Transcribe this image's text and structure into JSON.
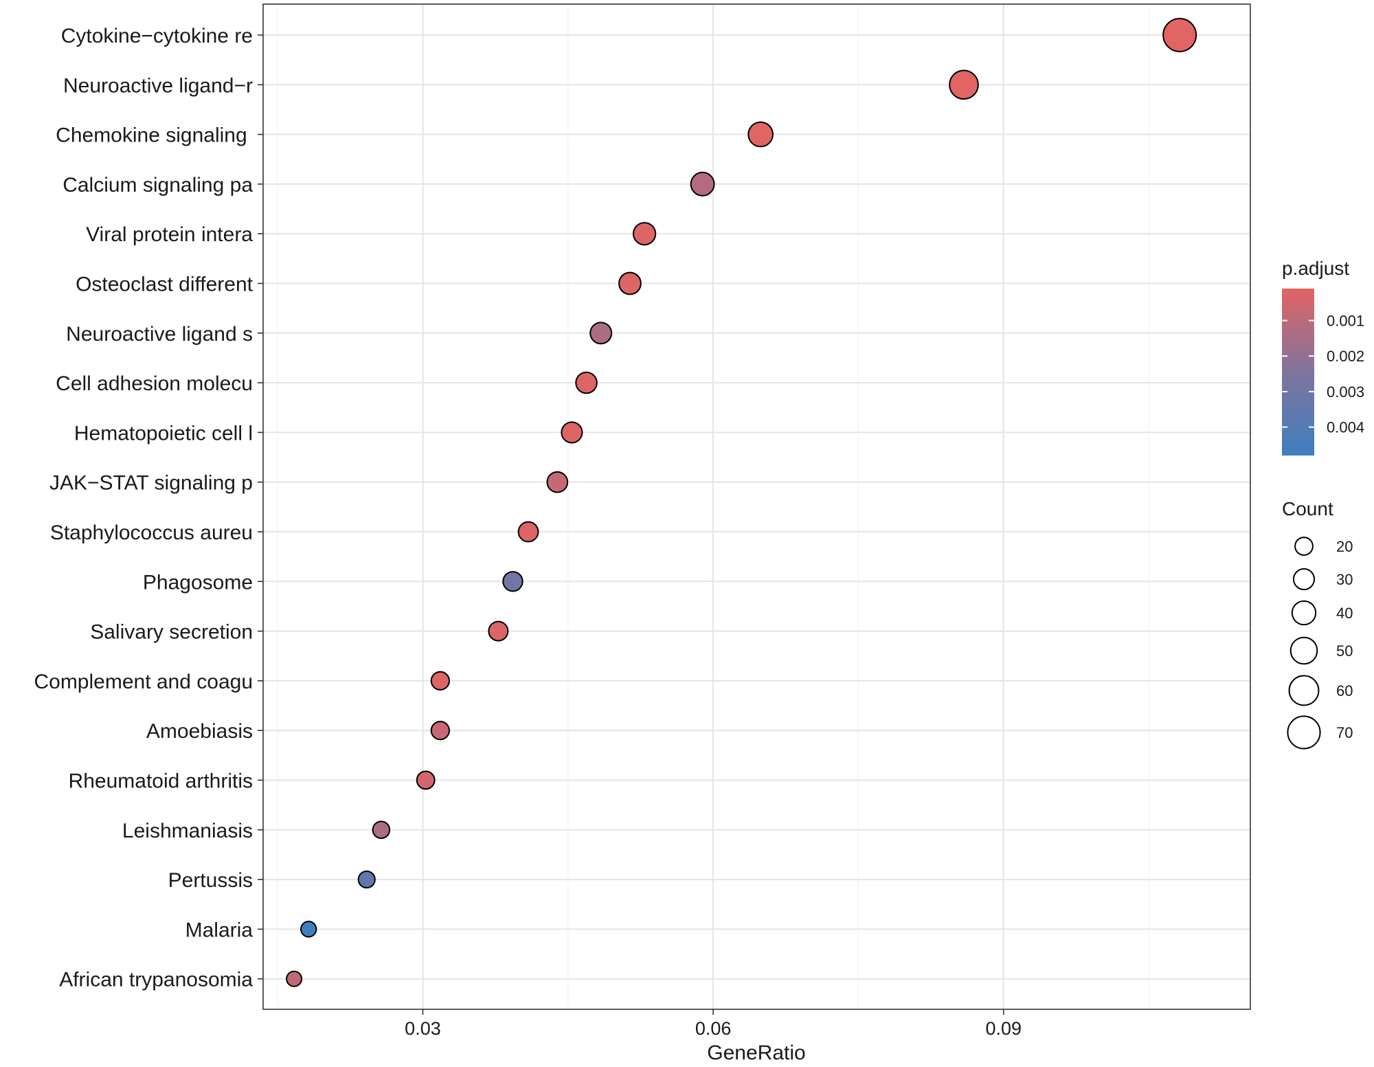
{
  "chart_data": {
    "type": "scatter",
    "title": "",
    "xlabel": "GeneRatio",
    "ylabel": "",
    "xlim": [
      0.0135,
      0.1155
    ],
    "x_ticks": [
      0.03,
      0.06,
      0.09
    ],
    "x_tick_labels": [
      "0.03",
      "0.06",
      "0.09"
    ],
    "grid": true,
    "categories": [
      "Cytokine−cytokine re",
      "Neuroactive ligand−r",
      "Chemokine signaling ",
      "Calcium signaling pa",
      "Viral protein intera",
      "Osteoclast different",
      "Neuroactive ligand s",
      "Cell adhesion molecu",
      "Hematopoietic cell l",
      "JAK−STAT signaling p",
      "Staphylococcus aureu",
      "Phagosome",
      "Salivary secretion",
      "Complement and coagu",
      "Amoebiasis",
      "Rheumatoid arthritis",
      "Leishmaniasis",
      "Pertussis",
      "Malaria",
      "African trypanosomia"
    ],
    "points": [
      {
        "term": "Cytokine−cytokine re",
        "gene_ratio": 0.1082,
        "count": 72,
        "p_adjust": 0.0001
      },
      {
        "term": "Neuroactive ligand−r",
        "gene_ratio": 0.0859,
        "count": 57,
        "p_adjust": 0.0001
      },
      {
        "term": "Chemokine signaling ",
        "gene_ratio": 0.0649,
        "count": 43,
        "p_adjust": 0.0001
      },
      {
        "term": "Calcium signaling pa",
        "gene_ratio": 0.0589,
        "count": 39,
        "p_adjust": 0.0012
      },
      {
        "term": "Viral protein intera",
        "gene_ratio": 0.0529,
        "count": 35,
        "p_adjust": 0.0002
      },
      {
        "term": "Osteoclast different",
        "gene_ratio": 0.0514,
        "count": 34,
        "p_adjust": 0.0002
      },
      {
        "term": "Neuroactive ligand s",
        "gene_ratio": 0.0484,
        "count": 32,
        "p_adjust": 0.0014
      },
      {
        "term": "Cell adhesion molecu",
        "gene_ratio": 0.0469,
        "count": 31,
        "p_adjust": 0.0002
      },
      {
        "term": "Hematopoietic cell l",
        "gene_ratio": 0.0454,
        "count": 30,
        "p_adjust": 0.0002
      },
      {
        "term": "JAK−STAT signaling p",
        "gene_ratio": 0.0439,
        "count": 29,
        "p_adjust": 0.0008
      },
      {
        "term": "Staphylococcus aureu",
        "gene_ratio": 0.0409,
        "count": 27,
        "p_adjust": 0.0002
      },
      {
        "term": "Phagosome",
        "gene_ratio": 0.0393,
        "count": 26,
        "p_adjust": 0.0029
      },
      {
        "term": "Salivary secretion",
        "gene_ratio": 0.0378,
        "count": 25,
        "p_adjust": 0.0002
      },
      {
        "term": "Complement and coagu",
        "gene_ratio": 0.0318,
        "count": 21,
        "p_adjust": 0.0002
      },
      {
        "term": "Amoebiasis",
        "gene_ratio": 0.0318,
        "count": 21,
        "p_adjust": 0.0007
      },
      {
        "term": "Rheumatoid arthritis",
        "gene_ratio": 0.0303,
        "count": 20,
        "p_adjust": 0.0005
      },
      {
        "term": "Leishmaniasis",
        "gene_ratio": 0.0257,
        "count": 17,
        "p_adjust": 0.0014
      },
      {
        "term": "Pertussis",
        "gene_ratio": 0.0242,
        "count": 16,
        "p_adjust": 0.0036
      },
      {
        "term": "Malaria",
        "gene_ratio": 0.0182,
        "count": 12,
        "p_adjust": 0.0047
      },
      {
        "term": "African trypanosomia",
        "gene_ratio": 0.0167,
        "count": 11,
        "p_adjust": 0.0009
      }
    ],
    "color_legend": {
      "title": "p.adjust",
      "ticks": [
        0.001,
        0.002,
        0.003,
        0.004
      ],
      "tick_labels": [
        "0.001",
        "0.002",
        "0.003",
        "0.004"
      ],
      "range": [
        0.0001,
        0.0048
      ],
      "low_color": "#E26463",
      "high_color": "#3D7FBF",
      "mid_color": "#7F749E"
    },
    "size_legend": {
      "title": "Count",
      "values": [
        20,
        30,
        40,
        50,
        60,
        70
      ],
      "labels": [
        "20",
        "30",
        "40",
        "50",
        "60",
        "70"
      ]
    }
  }
}
